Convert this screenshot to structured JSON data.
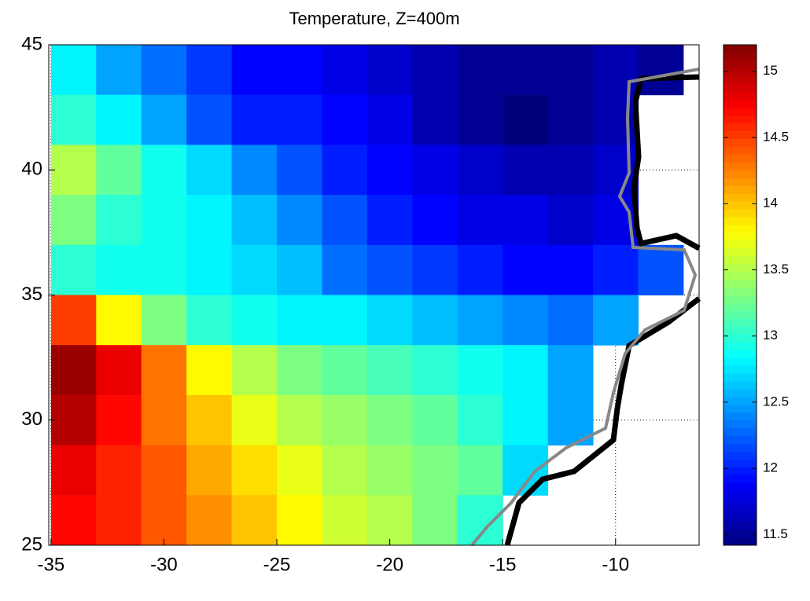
{
  "chart_data": {
    "type": "heatmap",
    "title": "Temperature, Z=400m",
    "colormap": "jet",
    "grid": true,
    "xlim": [
      -35.1,
      -6.3
    ],
    "ylim": [
      25,
      45
    ],
    "xticks": [
      -35,
      -30,
      -25,
      -20,
      -15,
      -10
    ],
    "yticks": [
      25,
      30,
      35,
      40,
      45
    ],
    "clim": [
      11.42,
      15.2
    ],
    "cticks": [
      11.5,
      12,
      12.5,
      13,
      13.5,
      14,
      14.5,
      15
    ],
    "x": [
      -34,
      -32,
      -30,
      -28,
      -26,
      -24,
      -22,
      -20,
      -18,
      -16,
      -14,
      -12,
      -10,
      -8
    ],
    "y": [
      44,
      42,
      40,
      38,
      36,
      34,
      32,
      30,
      28,
      26
    ],
    "values": [
      [
        12.8,
        12.5,
        12.3,
        12.1,
        11.9,
        11.9,
        11.8,
        11.7,
        11.6,
        11.5,
        11.5,
        11.5,
        11.6,
        11.5
      ],
      [
        13.0,
        12.8,
        12.5,
        12.2,
        12.0,
        12.0,
        11.9,
        11.8,
        11.6,
        11.5,
        11.4,
        11.5,
        11.6,
        null
      ],
      [
        13.5,
        13.2,
        12.9,
        12.7,
        12.4,
        12.2,
        12.0,
        11.9,
        11.8,
        11.7,
        11.6,
        11.6,
        11.7,
        null
      ],
      [
        13.3,
        13.0,
        12.9,
        12.8,
        12.6,
        12.4,
        12.2,
        12.0,
        11.9,
        11.8,
        11.8,
        11.7,
        11.8,
        null
      ],
      [
        13.0,
        12.9,
        12.9,
        12.8,
        12.7,
        12.6,
        12.3,
        12.2,
        12.1,
        12.0,
        11.9,
        11.9,
        12.0,
        12.2
      ],
      [
        14.5,
        13.8,
        13.3,
        13.0,
        12.9,
        12.8,
        12.8,
        12.7,
        12.6,
        12.5,
        12.4,
        12.3,
        12.5,
        null
      ],
      [
        15.1,
        14.8,
        14.3,
        13.8,
        13.5,
        13.3,
        13.2,
        13.1,
        13.0,
        12.9,
        12.8,
        12.5,
        null,
        null
      ],
      [
        15.0,
        14.7,
        14.3,
        14.0,
        13.7,
        13.5,
        13.4,
        13.3,
        13.2,
        13.0,
        12.8,
        12.5,
        null,
        null
      ],
      [
        14.8,
        14.6,
        14.4,
        14.1,
        13.9,
        13.7,
        13.5,
        13.4,
        13.3,
        13.2,
        12.7,
        null,
        null,
        null
      ],
      [
        14.7,
        14.6,
        14.4,
        14.2,
        14.0,
        13.8,
        13.6,
        13.5,
        13.3,
        13.0,
        null,
        null,
        null,
        null
      ]
    ]
  }
}
